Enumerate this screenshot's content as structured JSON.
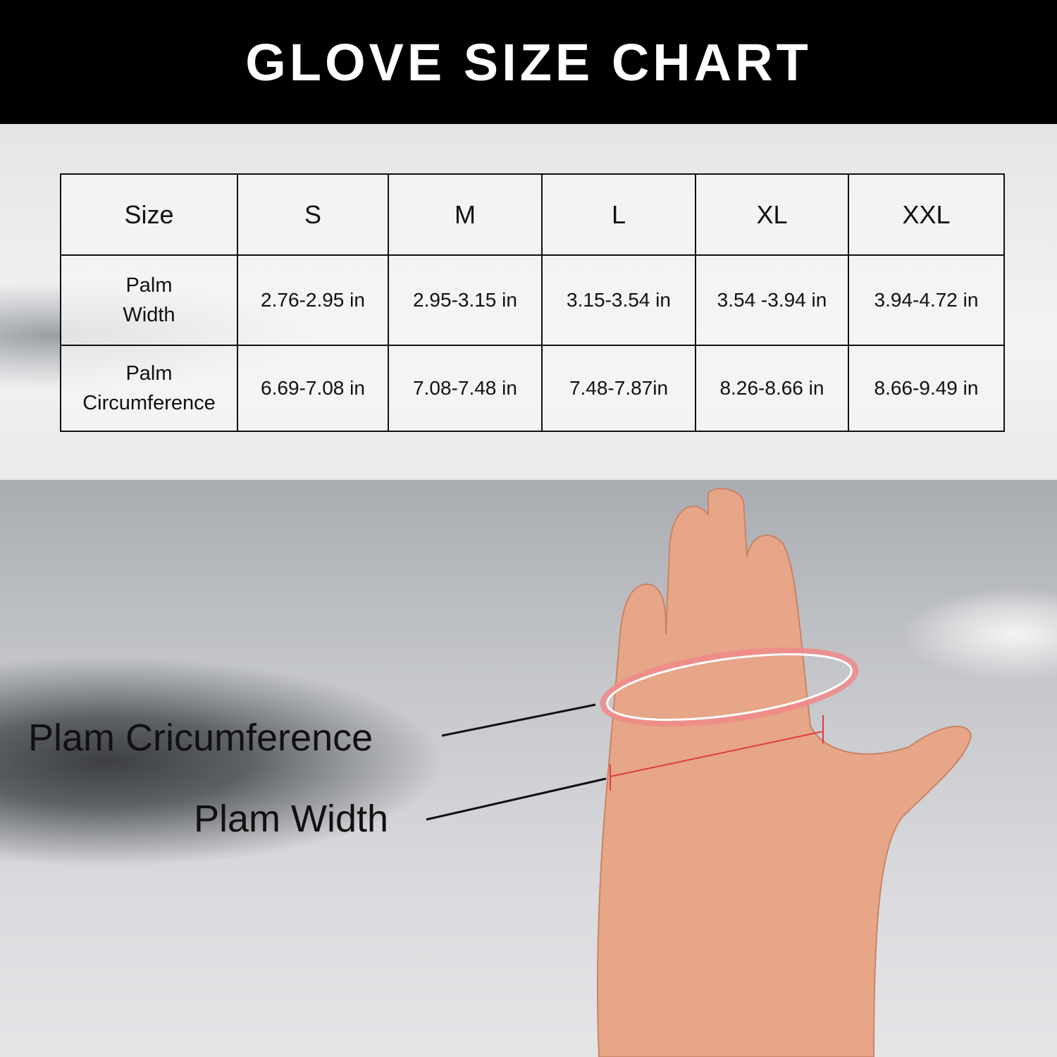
{
  "title": "GLOVE SIZE CHART",
  "table": {
    "headers": [
      "Size",
      "S",
      "M",
      "L",
      "XL",
      "XXL"
    ],
    "rows": [
      {
        "label_line1": "Palm",
        "label_line2": "Width",
        "values": [
          "2.76-2.95 in",
          "2.95-3.15 in",
          "3.15-3.54 in",
          "3.54 -3.94 in",
          "3.94-4.72 in"
        ]
      },
      {
        "label_line1": "Palm",
        "label_line2": "Circumference",
        "values": [
          "6.69-7.08 in",
          "7.08-7.48 in",
          "7.48-7.87in",
          "8.26-8.66 in",
          "8.66-9.49  in"
        ]
      }
    ]
  },
  "annotations": {
    "circumference": "Plam Cricumference",
    "width": "Plam Width"
  },
  "colors": {
    "header_bg": "#000000",
    "measure_line": "#e23b3b",
    "skin": "#e8a98a"
  }
}
